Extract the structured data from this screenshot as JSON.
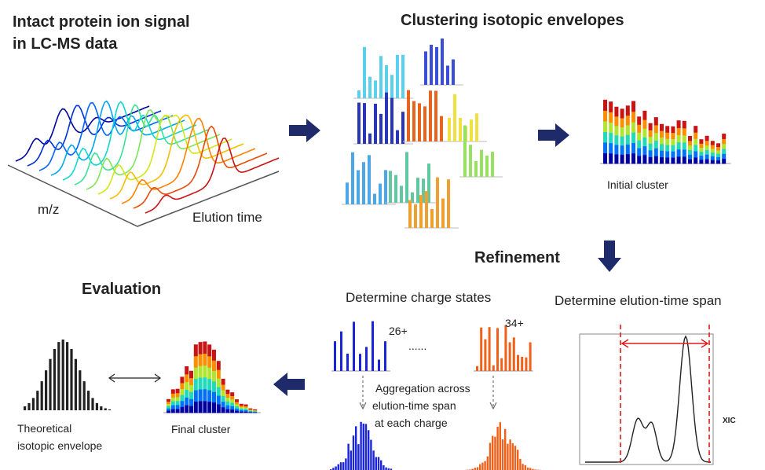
{
  "signal": {
    "title": [
      "Intact protein ion signal",
      "in LC-MS data"
    ],
    "axis_mz": "m/z",
    "axis_time": "Elution time"
  },
  "clustering": {
    "title": "Clustering isotopic envelopes",
    "caption": "Initial cluster"
  },
  "refinement": {
    "title": "Refinement",
    "charge": {
      "title": "Determine charge states",
      "charges": [
        "26+",
        "34+"
      ],
      "ellipsis": "......",
      "note": [
        "Aggregation across",
        "elution-time span",
        "at each charge"
      ]
    },
    "elution": {
      "title": "Determine elution-time span",
      "trace_label": "XIC"
    }
  },
  "evaluation": {
    "title": "Evaluation",
    "theoretical": [
      "Theoretical",
      "isotopic envelope"
    ],
    "final": "Final cluster"
  }
}
